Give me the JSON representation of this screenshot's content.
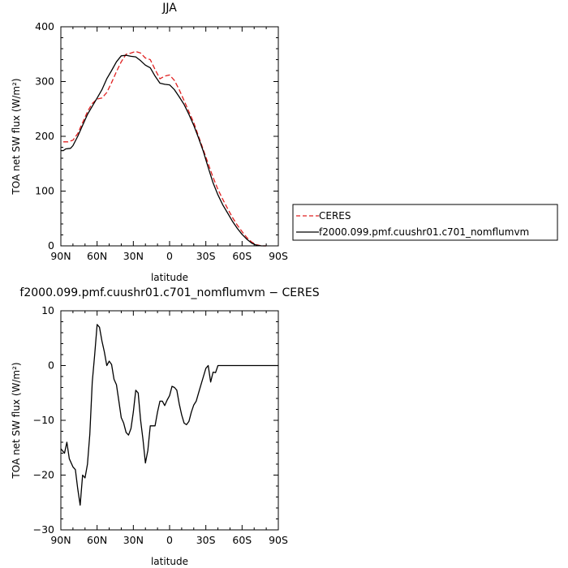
{
  "chart_data": [
    {
      "type": "line",
      "title": "JJA",
      "xlabel": "latitude",
      "ylabel": "TOA net SW flux (W/m²)",
      "xlim": [
        90,
        -90
      ],
      "ylim": [
        0,
        400
      ],
      "xticks": [
        {
          "value": 90,
          "label": "90N"
        },
        {
          "value": 60,
          "label": "60N"
        },
        {
          "value": 30,
          "label": "30N"
        },
        {
          "value": 0,
          "label": "0"
        },
        {
          "value": -30,
          "label": "30S"
        },
        {
          "value": -60,
          "label": "60S"
        },
        {
          "value": -90,
          "label": "90S"
        }
      ],
      "yticks": [
        0,
        100,
        200,
        300,
        400
      ],
      "legend": "right",
      "series": [
        {
          "name": "CERES",
          "color": "#e02020",
          "dash": "dashed",
          "x": [
            88,
            84,
            80,
            76,
            72,
            68,
            64,
            60,
            56,
            52,
            48,
            44,
            40,
            36,
            32,
            28,
            24,
            20,
            16,
            12,
            8,
            4,
            0,
            -4,
            -8,
            -12,
            -16,
            -20,
            -24,
            -28,
            -32,
            -36,
            -40,
            -44,
            -48,
            -52,
            -56,
            -60,
            -64,
            -68,
            -72,
            -76,
            -80
          ],
          "y": [
            190,
            190,
            193,
            205,
            225,
            245,
            260,
            268,
            270,
            280,
            298,
            318,
            336,
            350,
            352,
            355,
            352,
            343,
            340,
            322,
            305,
            310,
            312,
            302,
            285,
            265,
            245,
            225,
            200,
            175,
            150,
            125,
            103,
            85,
            68,
            52,
            38,
            26,
            15,
            7,
            2,
            0,
            0
          ]
        },
        {
          "name": "f2000.099.pmf.cuushr01.c701_nomflumvm",
          "color": "#000000",
          "dash": "solid",
          "x": [
            90,
            88,
            86,
            82,
            80,
            76,
            72,
            68,
            64,
            60,
            56,
            52,
            48,
            44,
            40,
            36,
            32,
            28,
            24,
            20,
            16,
            12,
            8,
            4,
            0,
            -4,
            -8,
            -12,
            -16,
            -20,
            -24,
            -28,
            -32,
            -36,
            -40,
            -44,
            -48,
            -52,
            -56,
            -60,
            -64,
            -68,
            -72,
            -76,
            -80
          ],
          "y": [
            174,
            174,
            177,
            178,
            183,
            200,
            220,
            240,
            255,
            270,
            285,
            305,
            320,
            336,
            347,
            348,
            346,
            345,
            338,
            330,
            325,
            310,
            297,
            295,
            294,
            285,
            272,
            258,
            240,
            220,
            197,
            172,
            143,
            115,
            93,
            75,
            60,
            45,
            32,
            21,
            12,
            5,
            1,
            0,
            0
          ]
        }
      ]
    },
    {
      "type": "line",
      "title": "f2000.099.pmf.cuushr01.c701_nomflumvm  −  CERES",
      "xlabel": "latitude",
      "ylabel": "TOA net SW flux (W/m²)",
      "xlim": [
        90,
        -90
      ],
      "ylim": [
        -30,
        10
      ],
      "xticks": [
        {
          "value": 90,
          "label": "90N"
        },
        {
          "value": 60,
          "label": "60N"
        },
        {
          "value": 30,
          "label": "30N"
        },
        {
          "value": 0,
          "label": "0"
        },
        {
          "value": -30,
          "label": "30S"
        },
        {
          "value": -60,
          "label": "60S"
        },
        {
          "value": -90,
          "label": "90S"
        }
      ],
      "yticks": [
        -30,
        -20,
        -10,
        0,
        10
      ],
      "series": [
        {
          "color": "#000000",
          "dash": "solid",
          "x": [
            90,
            87,
            85,
            83,
            80,
            78,
            76,
            74,
            72,
            70,
            68,
            66,
            64,
            62,
            60,
            58,
            56,
            54,
            52,
            50,
            48,
            46,
            44,
            42,
            40,
            38,
            36,
            34,
            32,
            30,
            28,
            26,
            24,
            22,
            20,
            18,
            16,
            14,
            12,
            10,
            8,
            6,
            4,
            2,
            0,
            -2,
            -4,
            -6,
            -8,
            -10,
            -12,
            -14,
            -16,
            -18,
            -20,
            -22,
            -24,
            -26,
            -28,
            -30,
            -32,
            -34,
            -36,
            -38,
            -40,
            -42,
            -44,
            -46,
            -48,
            -50,
            -52,
            -54,
            -56,
            -58,
            -60,
            -62,
            -64,
            -66,
            -68,
            -70,
            -72,
            -74,
            -76,
            -78,
            -80,
            -82,
            -84,
            -86,
            -88,
            -90
          ],
          "y": [
            -15.2,
            -16,
            -14,
            -17,
            -18.5,
            -19,
            -22.5,
            -25.5,
            -20,
            -20.5,
            -18,
            -12.5,
            -3,
            2,
            7.5,
            7,
            4.5,
            2.5,
            0,
            0.8,
            0.2,
            -2.5,
            -3.5,
            -6.5,
            -9.5,
            -10.5,
            -12.2,
            -12.7,
            -11.5,
            -8.5,
            -4.5,
            -5,
            -10,
            -13.5,
            -17.8,
            -15.5,
            -11,
            -11,
            -11,
            -8.5,
            -6.5,
            -6.5,
            -7.3,
            -6.3,
            -5.5,
            -3.8,
            -4,
            -4.5,
            -7,
            -9,
            -10.5,
            -10.8,
            -10.2,
            -8.5,
            -7.2,
            -6.5,
            -5,
            -3.5,
            -2,
            -0.5,
            0,
            -3,
            -1.2,
            -1.3,
            0,
            0,
            0,
            0,
            0,
            0,
            0,
            0,
            0,
            0,
            0,
            0,
            0,
            0,
            0,
            0,
            0,
            0,
            0,
            0,
            0,
            0,
            0,
            0,
            0,
            0
          ]
        }
      ]
    }
  ]
}
